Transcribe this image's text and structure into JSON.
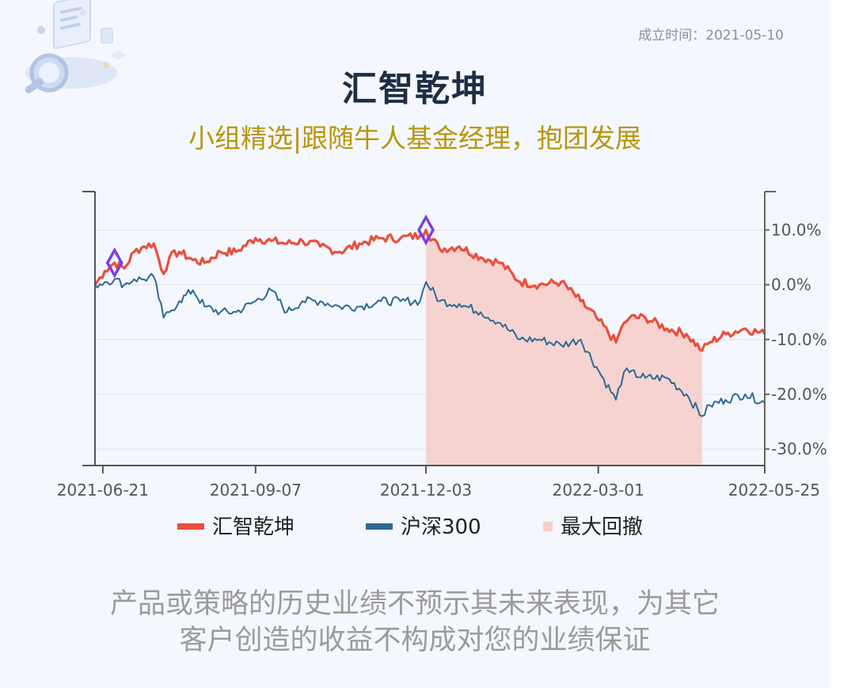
{
  "header": {
    "founded_date": "成立时间：2021-05-10",
    "title": "汇智乾坤",
    "subtitle": "小组精选|跟随牛人基金经理，抱团发展"
  },
  "footer": {
    "disclaimer_line1": "产品或策略的历史业绩不预示其未来表现，为其它",
    "disclaimer_line2": "客户创造的收益不构成对您的业绩保证"
  },
  "colors": {
    "fund": "#e8503e",
    "index": "#2d6a94",
    "drawdown": "#f6cdc8",
    "marker": "#7b3fe4"
  },
  "icons": {
    "decoration": "magnifier-document-illustration"
  },
  "chart_data": {
    "type": "line",
    "x_ticks": [
      "2021-06-21",
      "2021-09-07",
      "2021-12-03",
      "2022-03-01",
      "2022-05-25"
    ],
    "y_ticks": [
      "10.0%",
      "0.0%",
      "-10.0%",
      "-20.0%",
      "-30.0%"
    ],
    "y_tick_values": [
      10,
      0,
      -10,
      -20,
      -30
    ],
    "ylim": [
      -33,
      17
    ],
    "xlim": [
      "2021-06-17",
      "2022-05-25"
    ],
    "grid": true,
    "y_axis_side": "right",
    "legend_position": "bottom",
    "series": [
      {
        "name": "汇智乾坤",
        "key": "fund",
        "dates": [
          "2021-06-17",
          "2021-06-22",
          "2021-06-27",
          "2021-07-02",
          "2021-07-07",
          "2021-07-12",
          "2021-07-17",
          "2021-07-22",
          "2021-07-25",
          "2021-07-30",
          "2021-08-06",
          "2021-08-12",
          "2021-08-20",
          "2021-08-28",
          "2021-09-07",
          "2021-09-15",
          "2021-09-23",
          "2021-10-01",
          "2021-10-10",
          "2021-10-20",
          "2021-10-30",
          "2021-11-10",
          "2021-11-20",
          "2021-11-30",
          "2021-12-03",
          "2021-12-10",
          "2021-12-20",
          "2021-12-31",
          "2022-01-10",
          "2022-01-20",
          "2022-01-30",
          "2022-02-10",
          "2022-02-20",
          "2022-02-28",
          "2022-03-10",
          "2022-03-14",
          "2022-03-17",
          "2022-03-25",
          "2022-04-05",
          "2022-04-15",
          "2022-04-23",
          "2022-04-27",
          "2022-05-05",
          "2022-05-15",
          "2022-05-25"
        ],
        "values": [
          0,
          2.5,
          4,
          3,
          6,
          7,
          7.5,
          2,
          5,
          6,
          4.5,
          4,
          6,
          6,
          8.5,
          8,
          7.5,
          8,
          7,
          6,
          7.5,
          8.5,
          8.5,
          9,
          10,
          6.5,
          7,
          5,
          4,
          0.5,
          0,
          0.5,
          -3,
          -6,
          -10.5,
          -7,
          -6,
          -6,
          -8,
          -9,
          -12,
          -10.5,
          -9,
          -8,
          -9
        ]
      },
      {
        "name": "沪深300",
        "key": "index",
        "dates": [
          "2021-06-17",
          "2021-06-22",
          "2021-06-27",
          "2021-07-02",
          "2021-07-07",
          "2021-07-12",
          "2021-07-17",
          "2021-07-22",
          "2021-07-25",
          "2021-07-30",
          "2021-08-06",
          "2021-08-12",
          "2021-08-20",
          "2021-08-28",
          "2021-09-07",
          "2021-09-15",
          "2021-09-23",
          "2021-10-01",
          "2021-10-10",
          "2021-10-20",
          "2021-10-30",
          "2021-11-10",
          "2021-11-20",
          "2021-11-30",
          "2021-12-03",
          "2021-12-10",
          "2021-12-20",
          "2021-12-31",
          "2022-01-10",
          "2022-01-20",
          "2022-01-30",
          "2022-02-10",
          "2022-02-20",
          "2022-02-28",
          "2022-03-10",
          "2022-03-14",
          "2022-03-17",
          "2022-03-25",
          "2022-04-05",
          "2022-04-15",
          "2022-04-23",
          "2022-04-27",
          "2022-05-05",
          "2022-05-15",
          "2022-05-25"
        ],
        "values": [
          0,
          0.5,
          1,
          0,
          1,
          1,
          1.5,
          -6,
          -5,
          -3,
          -1,
          -4,
          -5,
          -5,
          -3,
          -1,
          -5,
          -3,
          -3,
          -4,
          -4,
          -3,
          -3,
          -3,
          0.5,
          -3,
          -3.5,
          -5,
          -7,
          -10,
          -10,
          -11,
          -10,
          -15,
          -21,
          -16,
          -16,
          -17,
          -17,
          -20,
          -24,
          -22,
          -21,
          -20,
          -21.5
        ]
      }
    ],
    "drawdown": {
      "name": "最大回撤",
      "start": "2021-12-03",
      "end": "2022-04-23"
    },
    "max_drawdown_markers": [
      {
        "date": "2021-06-27",
        "value": 4
      },
      {
        "date": "2021-12-03",
        "value": 10
      }
    ]
  }
}
